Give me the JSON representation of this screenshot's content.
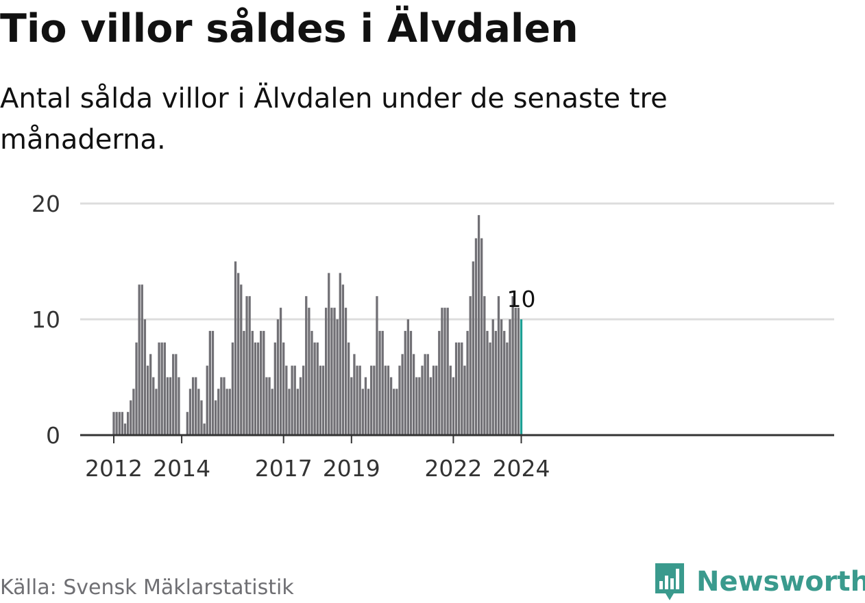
{
  "title": "Tio villor såldes i Älvdalen",
  "subtitle": "Antal sålda villor i Älvdalen under de senaste tre månaderna.",
  "source": "Källa: Svensk Mäklarstatistik",
  "brand": {
    "name": "Newsworthy",
    "color": "#3a9a8d",
    "logo_icon": "bar-chart-icon"
  },
  "colors": {
    "bar": "#717075",
    "highlight": "#1d9f94",
    "grid": "#dddddd",
    "axis": "#333333"
  },
  "chart_data": {
    "type": "bar",
    "title": "Tio villor såldes i Älvdalen",
    "xlabel": "",
    "ylabel": "",
    "ylim": [
      0,
      20
    ],
    "yticks": [
      0,
      10,
      20
    ],
    "xticks": [
      "2012",
      "2014",
      "2017",
      "2019",
      "2022",
      "2024"
    ],
    "start": "2012-01",
    "end": "2024-01",
    "highlight_label": "10",
    "values": [
      2,
      2,
      2,
      2,
      1,
      2,
      3,
      4,
      8,
      13,
      13,
      10,
      6,
      7,
      5,
      4,
      8,
      8,
      8,
      5,
      5,
      7,
      7,
      5,
      0,
      0,
      2,
      4,
      5,
      5,
      4,
      3,
      1,
      6,
      9,
      9,
      3,
      4,
      5,
      5,
      4,
      4,
      8,
      15,
      14,
      13,
      9,
      12,
      12,
      9,
      8,
      8,
      9,
      9,
      5,
      5,
      4,
      8,
      10,
      11,
      8,
      6,
      4,
      6,
      6,
      4,
      5,
      6,
      12,
      11,
      9,
      8,
      8,
      6,
      6,
      11,
      14,
      11,
      11,
      10,
      14,
      13,
      11,
      8,
      5,
      7,
      6,
      6,
      4,
      5,
      4,
      6,
      6,
      12,
      9,
      9,
      6,
      6,
      5,
      4,
      4,
      6,
      7,
      9,
      10,
      9,
      7,
      5,
      5,
      6,
      7,
      7,
      5,
      6,
      6,
      9,
      11,
      11,
      11,
      6,
      5,
      8,
      8,
      8,
      6,
      9,
      12,
      15,
      17,
      19,
      17,
      12,
      9,
      8,
      10,
      9,
      12,
      10,
      9,
      8,
      10,
      12,
      11,
      11,
      10
    ]
  }
}
